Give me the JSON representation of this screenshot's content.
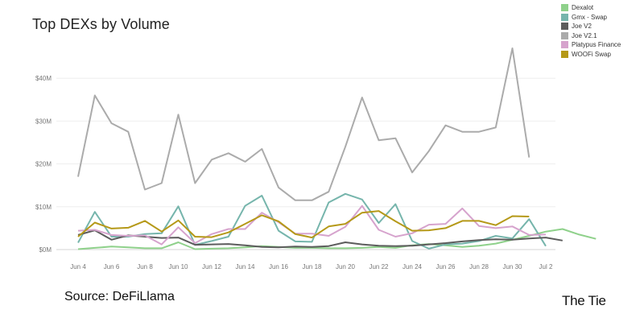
{
  "chart_data": {
    "type": "line",
    "title": "Top DEXs by Volume",
    "xlabel": "",
    "ylabel": "",
    "ylim": [
      0,
      46
    ],
    "y_ticks": [
      0,
      10,
      20,
      30,
      40
    ],
    "y_tick_labels": [
      "$0M",
      "$10M",
      "$20M",
      "$30M",
      "$40M"
    ],
    "x_ticks": [
      0,
      2,
      4,
      6,
      8,
      10,
      12,
      14,
      16,
      18,
      20,
      22,
      24,
      26,
      28
    ],
    "x_tick_labels": [
      "Jun 4",
      "Jun 6",
      "Jun 8",
      "Jun 10",
      "Jun 12",
      "Jun 14",
      "Jun 16",
      "Jun 18",
      "Jun 20",
      "Jun 22",
      "Jun 24",
      "Jun 26",
      "Jun 28",
      "Jun 30",
      "Jul 2"
    ],
    "grid": true,
    "legend_position": "top-right",
    "series": [
      {
        "name": "Dexalot",
        "color": "#8fd18b",
        "values": [
          0.1,
          0.4,
          0.7,
          0.5,
          0.3,
          0.3,
          1.7,
          0.1,
          0.2,
          0.3,
          0.5,
          0.8,
          0.6,
          0.4,
          0.4,
          0.3,
          0.3,
          0.4,
          0.6,
          0.4,
          1.0,
          1.3,
          1.0,
          0.6,
          0.9,
          1.4,
          2.3,
          3.2,
          4.2,
          4.8,
          3.5,
          2.5
        ]
      },
      {
        "name": "Gmx - Swap",
        "color": "#76b5ac",
        "values": [
          1.6,
          8.8,
          3.0,
          3.0,
          3.6,
          3.8,
          10.1,
          1.1,
          2.0,
          3.0,
          10.2,
          12.6,
          4.4,
          1.9,
          1.8,
          11.0,
          13.0,
          11.7,
          6.2,
          10.6,
          2.0,
          0.2,
          1.2,
          1.4,
          2.0,
          3.2,
          2.6,
          7.1,
          0.8
        ]
      },
      {
        "name": "Joe V2",
        "color": "#5c5c5c",
        "values": [
          3.4,
          4.5,
          2.3,
          3.3,
          3.0,
          2.7,
          2.8,
          1.1,
          1.2,
          1.3,
          1.0,
          0.6,
          0.5,
          0.7,
          0.6,
          0.8,
          1.7,
          1.2,
          0.9,
          0.8,
          0.9,
          1.2,
          1.5,
          1.9,
          2.2,
          2.4,
          2.3,
          2.6,
          2.8,
          2.1
        ]
      },
      {
        "name": "Joe V2.1",
        "color": "#ababab",
        "values": [
          17,
          36,
          29.5,
          27.5,
          14,
          15.5,
          31.5,
          15.5,
          21,
          22.5,
          20.5,
          23.5,
          14.5,
          11.5,
          11.5,
          13.5,
          24,
          35.5,
          25.5,
          26,
          18,
          23,
          29,
          27.5,
          27.5,
          28.5,
          47,
          21.5
        ]
      },
      {
        "name": "Platypus Finance",
        "color": "#d6a3cd",
        "values": [
          4.4,
          4.6,
          3.4,
          3.2,
          3.3,
          1.2,
          5.2,
          1.5,
          3.6,
          4.8,
          4.8,
          8.6,
          6.4,
          3.7,
          3.7,
          3.2,
          5.3,
          10.2,
          4.6,
          3.0,
          3.8,
          5.8,
          6.0,
          9.6,
          5.5,
          5.0,
          5.4,
          3.4,
          3.5
        ]
      },
      {
        "name": "WOOFi Swap",
        "color": "#b59918",
        "values": [
          3.0,
          6.3,
          4.9,
          5.1,
          6.7,
          4.2,
          6.8,
          3.0,
          2.9,
          4.0,
          6.0,
          8.0,
          6.6,
          3.6,
          2.8,
          5.4,
          6.0,
          8.6,
          9.0,
          6.6,
          4.4,
          4.5,
          5.0,
          6.7,
          6.7,
          5.7,
          7.8,
          7.7
        ]
      }
    ]
  },
  "footer": {
    "source": "Source: DeFiLlama",
    "brand": "The Tie"
  }
}
